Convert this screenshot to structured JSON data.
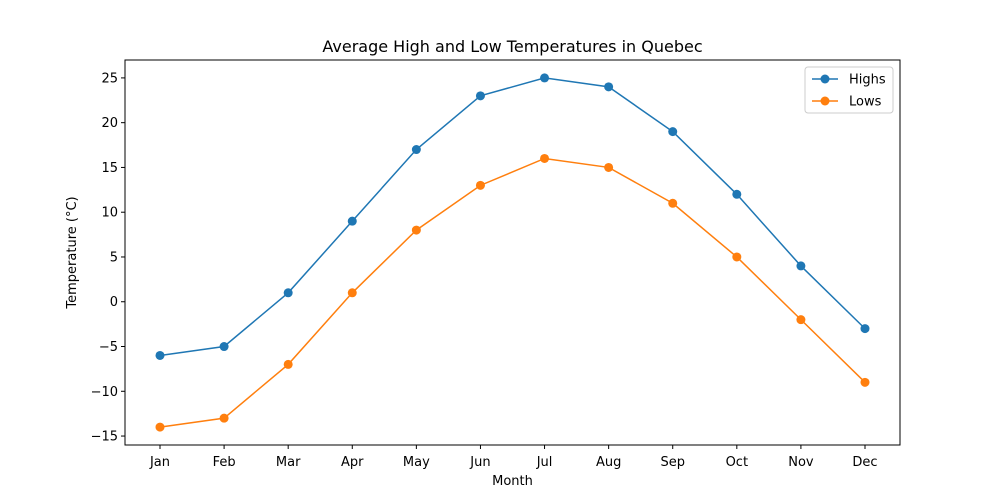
{
  "chart_data": {
    "type": "line",
    "title": "Average High and Low Temperatures in Quebec",
    "xlabel": "Month",
    "ylabel": "Temperature (°C)",
    "categories": [
      "Jan",
      "Feb",
      "Mar",
      "Apr",
      "May",
      "Jun",
      "Jul",
      "Aug",
      "Sep",
      "Oct",
      "Nov",
      "Dec"
    ],
    "series": [
      {
        "name": "Highs",
        "color": "#1f77b4",
        "values": [
          -6,
          -5,
          1,
          9,
          17,
          23,
          25,
          24,
          19,
          12,
          4,
          -3
        ]
      },
      {
        "name": "Lows",
        "color": "#ff7f0e",
        "values": [
          -14,
          -13,
          -7,
          1,
          8,
          13,
          16,
          15,
          11,
          5,
          -2,
          -9
        ]
      }
    ],
    "ylim": [
      -16,
      27
    ],
    "yticks": [
      -15,
      -10,
      -5,
      0,
      5,
      10,
      15,
      20,
      25
    ],
    "grid": false,
    "legend": "top-right",
    "marker": "circle"
  }
}
